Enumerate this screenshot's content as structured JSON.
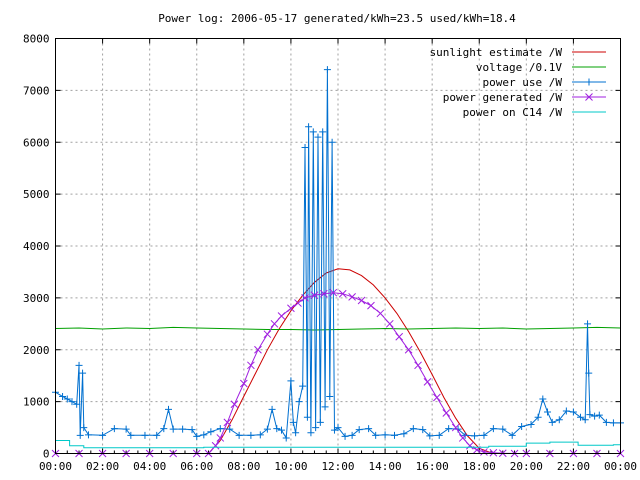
{
  "chart_data": {
    "type": "line",
    "title": "Power log: 2006-05-17 generated/kWh=23.5 used/kWh=18.4",
    "xlabel": "",
    "ylabel": "",
    "xlim": [
      0,
      24
    ],
    "ylim": [
      0,
      8000
    ],
    "x_tick_labels": [
      "00:00",
      "02:00",
      "04:00",
      "06:00",
      "08:00",
      "10:00",
      "12:00",
      "14:00",
      "16:00",
      "18:00",
      "20:00",
      "22:00",
      "00:00"
    ],
    "y_tick_labels": [
      "0",
      "1000",
      "2000",
      "3000",
      "4000",
      "5000",
      "6000",
      "7000",
      "8000"
    ],
    "y_ticks": [
      0,
      1000,
      2000,
      3000,
      4000,
      5000,
      6000,
      7000,
      8000
    ],
    "grid": true,
    "legend_position": "top-right",
    "series": [
      {
        "name": "sunlight estimate /W",
        "color": "#cc0000",
        "marker": "none",
        "points": [
          [
            6.5,
            0
          ],
          [
            7,
            250
          ],
          [
            7.5,
            650
          ],
          [
            8,
            1100
          ],
          [
            8.5,
            1550
          ],
          [
            9,
            2000
          ],
          [
            9.5,
            2400
          ],
          [
            10,
            2750
          ],
          [
            10.5,
            3050
          ],
          [
            11,
            3300
          ],
          [
            11.5,
            3480
          ],
          [
            12,
            3560
          ],
          [
            12.5,
            3540
          ],
          [
            13,
            3430
          ],
          [
            13.5,
            3250
          ],
          [
            14,
            3000
          ],
          [
            14.5,
            2700
          ],
          [
            15,
            2350
          ],
          [
            15.5,
            1950
          ],
          [
            16,
            1520
          ],
          [
            16.5,
            1080
          ],
          [
            17,
            680
          ],
          [
            17.5,
            340
          ],
          [
            18,
            100
          ],
          [
            18.5,
            15
          ],
          [
            19,
            0
          ]
        ]
      },
      {
        "name": "voltage /0.1V",
        "color": "#00a000",
        "marker": "none",
        "points": [
          [
            0,
            2410
          ],
          [
            1,
            2420
          ],
          [
            2,
            2400
          ],
          [
            3,
            2420
          ],
          [
            4,
            2410
          ],
          [
            5,
            2430
          ],
          [
            6,
            2420
          ],
          [
            7,
            2410
          ],
          [
            8,
            2400
          ],
          [
            9,
            2390
          ],
          [
            10,
            2390
          ],
          [
            11,
            2380
          ],
          [
            12,
            2390
          ],
          [
            13,
            2400
          ],
          [
            14,
            2410
          ],
          [
            15,
            2400
          ],
          [
            16,
            2410
          ],
          [
            17,
            2420
          ],
          [
            18,
            2410
          ],
          [
            19,
            2420
          ],
          [
            20,
            2400
          ],
          [
            21,
            2410
          ],
          [
            22,
            2420
          ],
          [
            23,
            2430
          ],
          [
            24,
            2420
          ]
        ]
      },
      {
        "name": "power use /W",
        "color": "#0070d0",
        "marker": "plus",
        "points": [
          [
            0,
            1180
          ],
          [
            0.3,
            1100
          ],
          [
            0.5,
            1050
          ],
          [
            0.7,
            1000
          ],
          [
            0.9,
            950
          ],
          [
            1.0,
            1700
          ],
          [
            1.05,
            350
          ],
          [
            1.15,
            1550
          ],
          [
            1.2,
            500
          ],
          [
            1.4,
            360
          ],
          [
            2,
            350
          ],
          [
            2.5,
            480
          ],
          [
            3,
            470
          ],
          [
            3.2,
            350
          ],
          [
            3.8,
            350
          ],
          [
            4.3,
            350
          ],
          [
            4.6,
            480
          ],
          [
            4.8,
            850
          ],
          [
            5.0,
            470
          ],
          [
            5.4,
            470
          ],
          [
            5.8,
            460
          ],
          [
            6.0,
            330
          ],
          [
            6.3,
            360
          ],
          [
            6.6,
            420
          ],
          [
            7.0,
            480
          ],
          [
            7.4,
            470
          ],
          [
            7.8,
            350
          ],
          [
            8.3,
            350
          ],
          [
            8.7,
            360
          ],
          [
            9.0,
            470
          ],
          [
            9.2,
            850
          ],
          [
            9.4,
            480
          ],
          [
            9.6,
            450
          ],
          [
            9.8,
            300
          ],
          [
            10.0,
            1400
          ],
          [
            10.1,
            600
          ],
          [
            10.2,
            400
          ],
          [
            10.35,
            1000
          ],
          [
            10.5,
            1300
          ],
          [
            10.6,
            5900
          ],
          [
            10.7,
            700
          ],
          [
            10.75,
            6300
          ],
          [
            10.85,
            400
          ],
          [
            10.95,
            6200
          ],
          [
            11.05,
            500
          ],
          [
            11.15,
            6100
          ],
          [
            11.25,
            600
          ],
          [
            11.35,
            6200
          ],
          [
            11.45,
            900
          ],
          [
            11.55,
            7400
          ],
          [
            11.65,
            1100
          ],
          [
            11.75,
            6000
          ],
          [
            11.85,
            450
          ],
          [
            12.0,
            500
          ],
          [
            12.3,
            330
          ],
          [
            12.6,
            350
          ],
          [
            12.9,
            460
          ],
          [
            13.3,
            480
          ],
          [
            13.6,
            350
          ],
          [
            14.0,
            360
          ],
          [
            14.4,
            350
          ],
          [
            14.8,
            380
          ],
          [
            15.2,
            480
          ],
          [
            15.6,
            460
          ],
          [
            15.9,
            340
          ],
          [
            16.3,
            350
          ],
          [
            16.7,
            480
          ],
          [
            17.1,
            470
          ],
          [
            17.4,
            350
          ],
          [
            17.8,
            340
          ],
          [
            18.2,
            350
          ],
          [
            18.6,
            480
          ],
          [
            19.0,
            470
          ],
          [
            19.4,
            350
          ],
          [
            19.8,
            520
          ],
          [
            20.2,
            560
          ],
          [
            20.5,
            700
          ],
          [
            20.7,
            1050
          ],
          [
            20.9,
            800
          ],
          [
            21.1,
            600
          ],
          [
            21.4,
            650
          ],
          [
            21.7,
            820
          ],
          [
            22.0,
            800
          ],
          [
            22.3,
            700
          ],
          [
            22.5,
            650
          ],
          [
            22.6,
            2500
          ],
          [
            22.65,
            1550
          ],
          [
            22.7,
            750
          ],
          [
            22.9,
            720
          ],
          [
            23.1,
            740
          ],
          [
            23.4,
            600
          ],
          [
            23.7,
            590
          ],
          [
            24.0,
            590
          ]
        ]
      },
      {
        "name": "power generated /W",
        "color": "#a020e0",
        "marker": "cross",
        "points": [
          [
            0,
            0
          ],
          [
            1,
            0
          ],
          [
            2,
            0
          ],
          [
            3,
            0
          ],
          [
            4,
            0
          ],
          [
            5,
            0
          ],
          [
            6,
            0
          ],
          [
            6.5,
            0
          ],
          [
            6.8,
            150
          ],
          [
            7,
            300
          ],
          [
            7.3,
            600
          ],
          [
            7.6,
            950
          ],
          [
            8,
            1350
          ],
          [
            8.3,
            1700
          ],
          [
            8.6,
            2000
          ],
          [
            9,
            2300
          ],
          [
            9.3,
            2500
          ],
          [
            9.6,
            2650
          ],
          [
            10,
            2800
          ],
          [
            10.3,
            2900
          ],
          [
            10.6,
            3000
          ],
          [
            11,
            3050
          ],
          [
            11.4,
            3080
          ],
          [
            11.8,
            3100
          ],
          [
            12.2,
            3080
          ],
          [
            12.6,
            3020
          ],
          [
            13,
            2950
          ],
          [
            13.4,
            2850
          ],
          [
            13.8,
            2700
          ],
          [
            14.2,
            2500
          ],
          [
            14.6,
            2250
          ],
          [
            15,
            2000
          ],
          [
            15.4,
            1700
          ],
          [
            15.8,
            1380
          ],
          [
            16.2,
            1080
          ],
          [
            16.6,
            780
          ],
          [
            17,
            500
          ],
          [
            17.3,
            300
          ],
          [
            17.6,
            150
          ],
          [
            17.9,
            70
          ],
          [
            18.2,
            30
          ],
          [
            18.6,
            15
          ],
          [
            19,
            5
          ],
          [
            19.5,
            0
          ],
          [
            20,
            0
          ],
          [
            21,
            0
          ],
          [
            22,
            0
          ],
          [
            23,
            0
          ],
          [
            24,
            0
          ]
        ]
      },
      {
        "name": "power on C14 /W",
        "color": "#00c8c8",
        "marker": "none",
        "points": [
          [
            0,
            250
          ],
          [
            0.6,
            250
          ],
          [
            0.6,
            150
          ],
          [
            1.2,
            150
          ],
          [
            1.2,
            110
          ],
          [
            6.3,
            110
          ],
          [
            6.3,
            120
          ],
          [
            18.4,
            120
          ],
          [
            18.4,
            140
          ],
          [
            20,
            140
          ],
          [
            20,
            200
          ],
          [
            21,
            200
          ],
          [
            21,
            220
          ],
          [
            22.2,
            220
          ],
          [
            22.2,
            160
          ],
          [
            23.7,
            160
          ],
          [
            23.7,
            170
          ],
          [
            24,
            170
          ]
        ]
      }
    ]
  }
}
